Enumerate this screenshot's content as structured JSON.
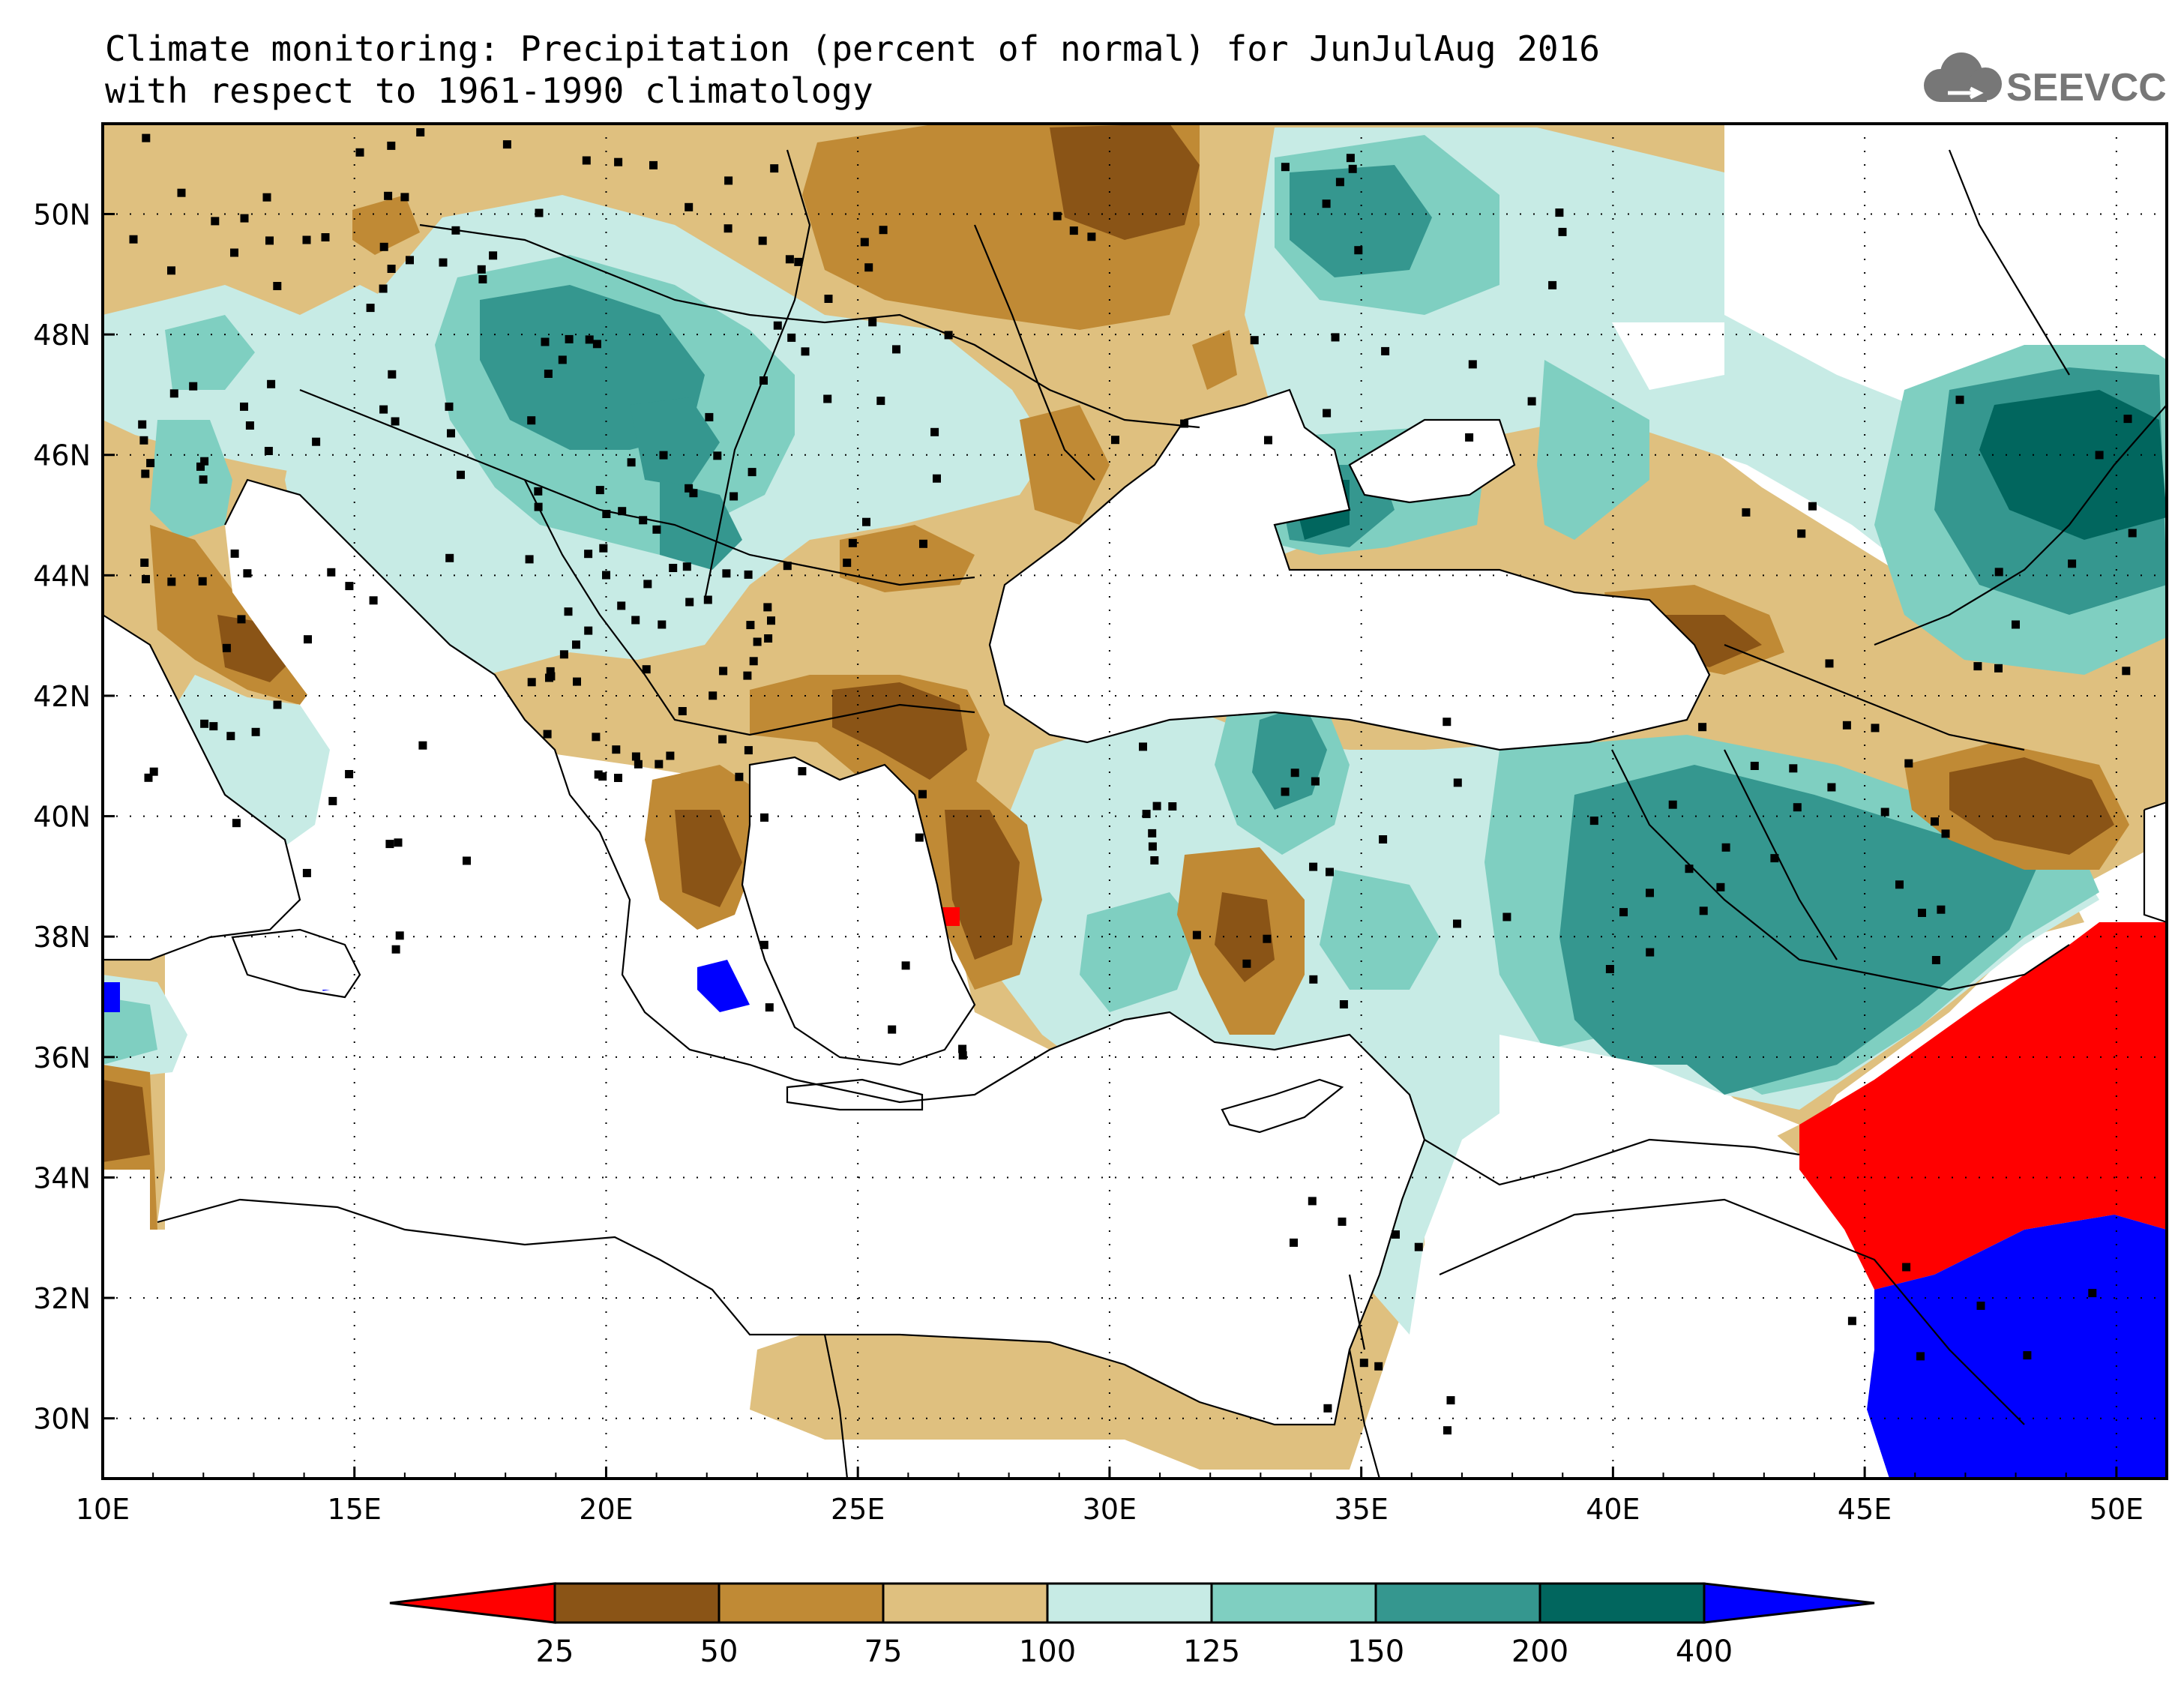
{
  "title": {
    "line1": "Climate monitoring: Precipitation (percent of normal) for JunJulAug 2016",
    "line2": "with respect to 1961-1990 climatology"
  },
  "logo": {
    "text": "SEEVCCC",
    "icon": "cloud-icon"
  },
  "map": {
    "lon_range": [
      10,
      51
    ],
    "lat_range": [
      29,
      51.5
    ],
    "x_ticks": [
      "10E",
      "15E",
      "20E",
      "25E",
      "30E",
      "35E",
      "40E",
      "45E",
      "50E"
    ],
    "y_ticks": [
      "30N",
      "32N",
      "34N",
      "36N",
      "38N",
      "40N",
      "42N",
      "44N",
      "46N",
      "48N",
      "50N"
    ],
    "grid": "dotted"
  },
  "legend": {
    "labels": [
      "25",
      "50",
      "75",
      "100",
      "125",
      "150",
      "200",
      "400"
    ],
    "colors": [
      "#ff0000",
      "#8a5416",
      "#c08a35",
      "#dfc07f",
      "#c7ebe5",
      "#7fcfc1",
      "#35978f",
      "#01665e",
      "#0000ff"
    ]
  },
  "colors": {
    "c_red": "#ff0000",
    "c_dbrown": "#8a5416",
    "c_mbrown": "#c08a35",
    "c_lbrown": "#dfc07f",
    "c_lteal": "#c7ebe5",
    "c_mteal": "#7fcfc1",
    "c_dteal": "#35978f",
    "c_vdteal": "#01665e",
    "c_blue": "#0000ff"
  }
}
